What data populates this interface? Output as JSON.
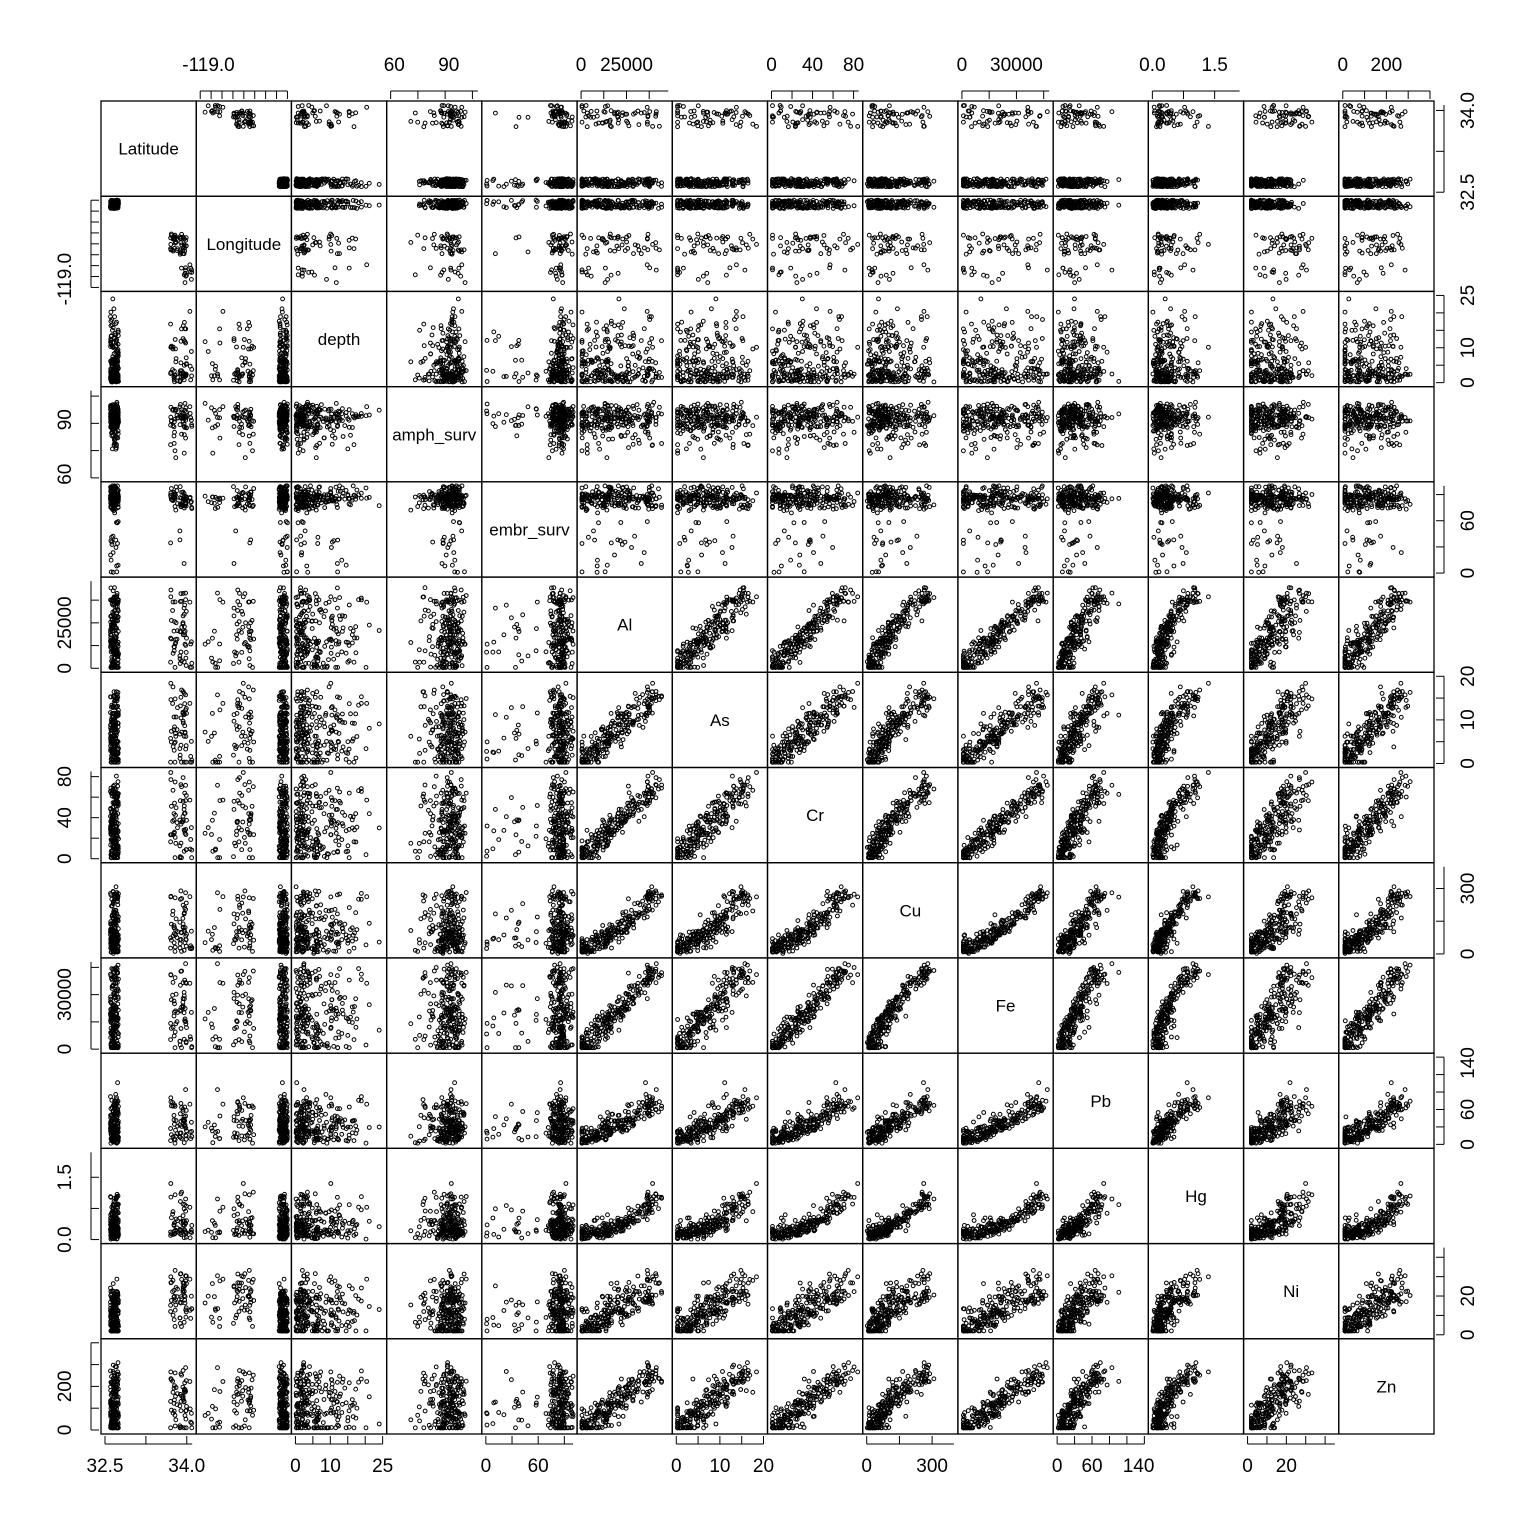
{
  "chart_data": {
    "type": "scatter",
    "subtype": "scatterplot-matrix",
    "title": "",
    "grid": false,
    "point_marker": "open-circle",
    "point_color": "#000000",
    "variables": [
      "Latitude",
      "Longitude",
      "depth",
      "amph_surv",
      "embr_surv",
      "Al",
      "As",
      "Cr",
      "Cu",
      "Fe",
      "Pb",
      "Hg",
      "Ni",
      "Zn"
    ],
    "ranges": {
      "Latitude": [
        32.5,
        34.1
      ],
      "Longitude": [
        -119.2,
        -117.1
      ],
      "depth": [
        0,
        25
      ],
      "amph_surv": [
        58,
        106
      ],
      "embr_surv": [
        0,
        100
      ],
      "Al": [
        0,
        48000
      ],
      "As": [
        0,
        20
      ],
      "Cr": [
        0,
        85
      ],
      "Cu": [
        0,
        400
      ],
      "Fe": [
        0,
        48000
      ],
      "Pb": [
        0,
        150
      ],
      "Hg": [
        0,
        2.1
      ],
      "Ni": [
        0,
        45
      ],
      "Zn": [
        0,
        400
      ]
    },
    "axis_ticks": {
      "top": [
        {
          "variable": "Longitude",
          "labels": [
            "-119.0"
          ]
        },
        {
          "variable": "amph_surv",
          "labels": [
            "60",
            "90"
          ]
        },
        {
          "variable": "Al",
          "labels": [
            "0",
            "25000"
          ]
        },
        {
          "variable": "Cr",
          "labels": [
            "0",
            "40",
            "80"
          ]
        },
        {
          "variable": "Fe",
          "labels": [
            "0",
            "30000"
          ]
        },
        {
          "variable": "Hg",
          "labels": [
            "0.0",
            "1.5"
          ]
        },
        {
          "variable": "Zn",
          "labels": [
            "0",
            "200"
          ]
        }
      ],
      "bottom": [
        {
          "variable": "Latitude",
          "labels": [
            "32.5",
            "34.0"
          ]
        },
        {
          "variable": "depth",
          "labels": [
            "0",
            "10",
            "25"
          ]
        },
        {
          "variable": "embr_surv",
          "labels": [
            "0",
            "60"
          ]
        },
        {
          "variable": "As",
          "labels": [
            "0",
            "10",
            "20"
          ]
        },
        {
          "variable": "Cu",
          "labels": [
            "0",
            "300"
          ]
        },
        {
          "variable": "Pb",
          "labels": [
            "0",
            "60",
            "140"
          ]
        },
        {
          "variable": "Ni",
          "labels": [
            "0",
            "20"
          ]
        }
      ],
      "left": [
        {
          "variable": "Longitude",
          "labels": [
            "-119.0"
          ]
        },
        {
          "variable": "amph_surv",
          "labels": [
            "60",
            "90"
          ]
        },
        {
          "variable": "Al",
          "labels": [
            "0",
            "25000"
          ]
        },
        {
          "variable": "Cr",
          "labels": [
            "0",
            "40",
            "80"
          ]
        },
        {
          "variable": "Fe",
          "labels": [
            "0",
            "30000"
          ]
        },
        {
          "variable": "Hg",
          "labels": [
            "0.0",
            "1.5"
          ]
        },
        {
          "variable": "Zn",
          "labels": [
            "0",
            "200"
          ]
        }
      ],
      "right": [
        {
          "variable": "Latitude",
          "labels": [
            "32.5",
            "34.0"
          ]
        },
        {
          "variable": "depth",
          "labels": [
            "0",
            "10",
            "25"
          ]
        },
        {
          "variable": "embr_surv",
          "labels": [
            "0",
            "60"
          ]
        },
        {
          "variable": "As",
          "labels": [
            "0",
            "10",
            "20"
          ]
        },
        {
          "variable": "Cu",
          "labels": [
            "0",
            "300"
          ]
        },
        {
          "variable": "Pb",
          "labels": [
            "0",
            "60",
            "140"
          ]
        },
        {
          "variable": "Ni",
          "labels": [
            "0",
            "20"
          ]
        }
      ]
    },
    "sample_points": [
      {
        "Latitude": 32.65,
        "Longitude": -117.15,
        "depth": 3,
        "amph_surv": 95,
        "embr_surv": 88,
        "Al": 12000,
        "As": 4,
        "Cr": 20,
        "Cu": 60,
        "Fe": 15000,
        "Pb": 20,
        "Hg": 0.25,
        "Ni": 8,
        "Zn": 120
      },
      {
        "Latitude": 32.7,
        "Longitude": -117.2,
        "depth": 10,
        "amph_surv": 88,
        "embr_surv": 85,
        "Al": 30000,
        "As": 9,
        "Cr": 45,
        "Cu": 150,
        "Fe": 32000,
        "Pb": 40,
        "Hg": 0.5,
        "Ni": 14,
        "Zn": 200
      },
      {
        "Latitude": 33.75,
        "Longitude": -118.25,
        "depth": 18,
        "amph_surv": 90,
        "embr_surv": 82,
        "Al": 25000,
        "As": 10,
        "Cr": 45,
        "Cu": 50,
        "Fe": 25000,
        "Pb": 25,
        "Hg": 0.2,
        "Ni": 25,
        "Zn": 150
      }
    ]
  }
}
